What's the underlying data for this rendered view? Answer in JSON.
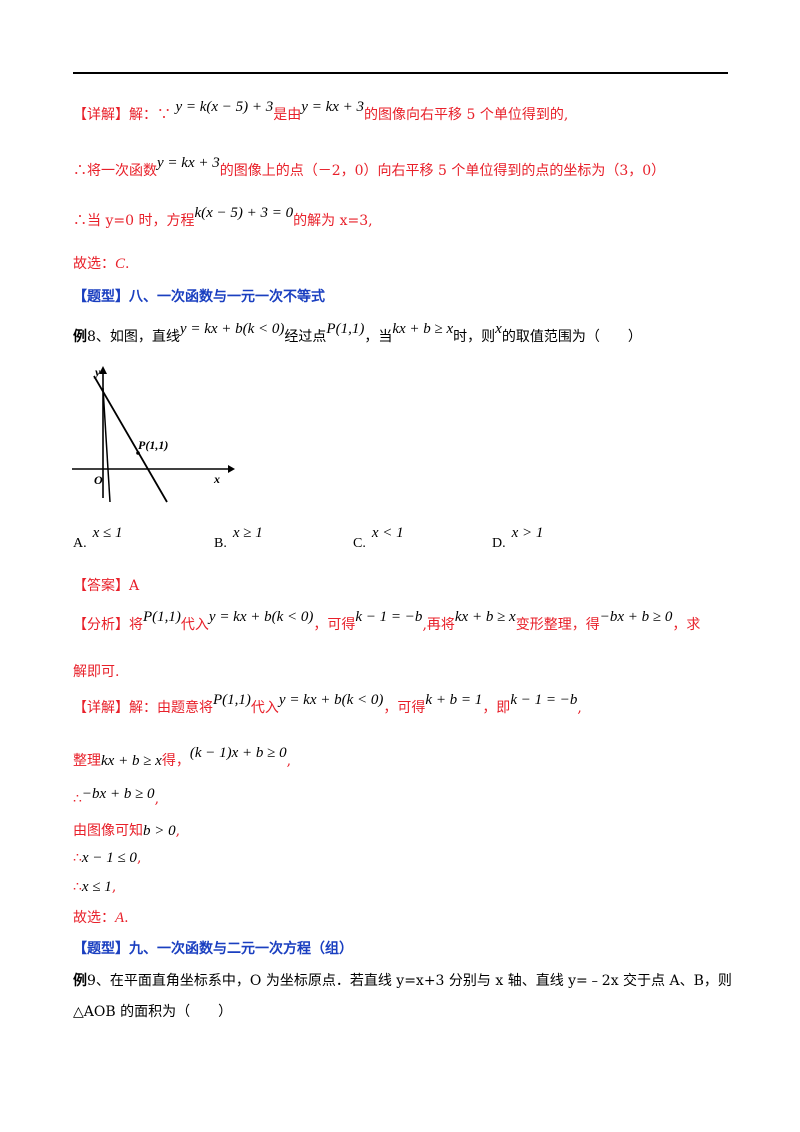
{
  "colors": {
    "answer_red": "#e8202a",
    "heading_blue": "#1a3fc0"
  },
  "p1": {
    "tag": "【详解】",
    "a": "解：∵",
    "m1": "y = k(x − 5) + 3",
    "b": "是由",
    "m2": "y = kx + 3",
    "c": "的图像向右平移 5 个单位得到的,"
  },
  "p2": {
    "a": "∴将一次函数",
    "m1": "y = kx + 3",
    "b": "的图像上的点（－2，0）向右平移 5 个单位得到的点的坐标为（3，0）"
  },
  "p3": {
    "a": "∴当 y=0 时，方程",
    "m1": "k(x − 5) + 3 = 0",
    "b": "的解为 x=3,"
  },
  "p4": {
    "a": "故选：",
    "b": "C",
    "c": "."
  },
  "h8": "【题型】八、一次函数与一元一次不等式",
  "q8": {
    "lead": "例",
    "num": "8、如图，直线",
    "m1": "y = kx + b(k < 0)",
    "a": "经过点",
    "m2": "P(1,1)",
    "b": "，当",
    "m3": "kx + b ≥ x",
    "c": "时，则",
    "m4": "x",
    "d": "的取值范围为（　　）"
  },
  "figure": {
    "y_label": "y",
    "x_label": "x",
    "origin_label": "O",
    "point_label": "P(1,1)"
  },
  "options": [
    {
      "label": "A.",
      "math": "x ≤ 1"
    },
    {
      "label": "B.",
      "math": "x ≥ 1"
    },
    {
      "label": "C.",
      "math": "x < 1"
    },
    {
      "label": "D.",
      "math": "x > 1"
    }
  ],
  "ans": {
    "tag": "【答案】",
    "value": "A"
  },
  "an": {
    "tag": "【分析】",
    "a": "将",
    "m1": "P(1,1)",
    "b": "代入",
    "m2": "y = kx + b(k < 0)",
    "c": "，可得",
    "m3": "k − 1 = −b",
    "d": ",再将",
    "m4": "kx + b ≥ x",
    "e": "变形整理，得",
    "m5": "−bx + b ≥ 0",
    "f": "，求",
    "g": "解即可."
  },
  "d1": {
    "tag": "【详解】",
    "a": "解：由题意将",
    "m1": "P(1,1)",
    "b": "代入",
    "m2": "y = kx + b(k < 0)",
    "c": "，可得",
    "m3": "k + b = 1",
    "d": "，即",
    "m4": "k − 1 = −b",
    "e": ","
  },
  "d2": {
    "a": "整理",
    "m1": "kx + b ≥ x",
    "b": "得，",
    "m2": "(k − 1)x + b ≥ 0",
    "c": ","
  },
  "d3": {
    "a": "∴",
    "m1": "−bx + b ≥ 0",
    "b": ","
  },
  "d4": {
    "a": "由图像可知",
    "m1": "b > 0",
    "b": ","
  },
  "d5": {
    "a": "∴",
    "m1": "x − 1 ≤ 0",
    "b": ","
  },
  "d6": {
    "a": "∴",
    "m1": "x ≤ 1",
    "b": ","
  },
  "d7": {
    "a": "故选：",
    "b": "A",
    "c": "."
  },
  "h9": "【题型】九、一次函数与二元一次方程（组）",
  "q9": {
    "lead": "例",
    "l1": "9、在平面直角坐标系中，O 为坐标原点．若直线 y=x+3 分别与 x 轴、直线 y=﹣2x 交于点 A、B，则",
    "l2": "△AOB 的面积为（　　）"
  }
}
